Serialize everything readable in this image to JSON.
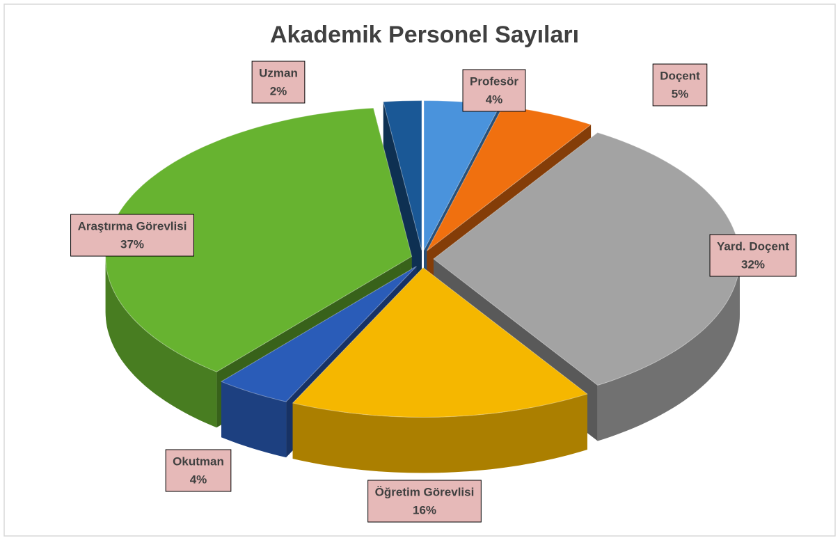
{
  "chart_data": {
    "type": "pie",
    "title": "Akademik Personel Sayıları",
    "categories": [
      "Profesör",
      "Doçent",
      "Yard. Doçent",
      "Öğretim Görevlisi",
      "Okutman",
      "Araştırma Görevlisi",
      "Uzman"
    ],
    "values": [
      4,
      5,
      32,
      16,
      4,
      37,
      2
    ],
    "value_labels": [
      "4%",
      "5%",
      "32%",
      "16%",
      "4%",
      "37%",
      "2%"
    ],
    "colors": [
      "#4a93dc",
      "#f0700f",
      "#a3a3a3",
      "#f5b700",
      "#2a5cb8",
      "#67b330",
      "#1a5896"
    ]
  }
}
